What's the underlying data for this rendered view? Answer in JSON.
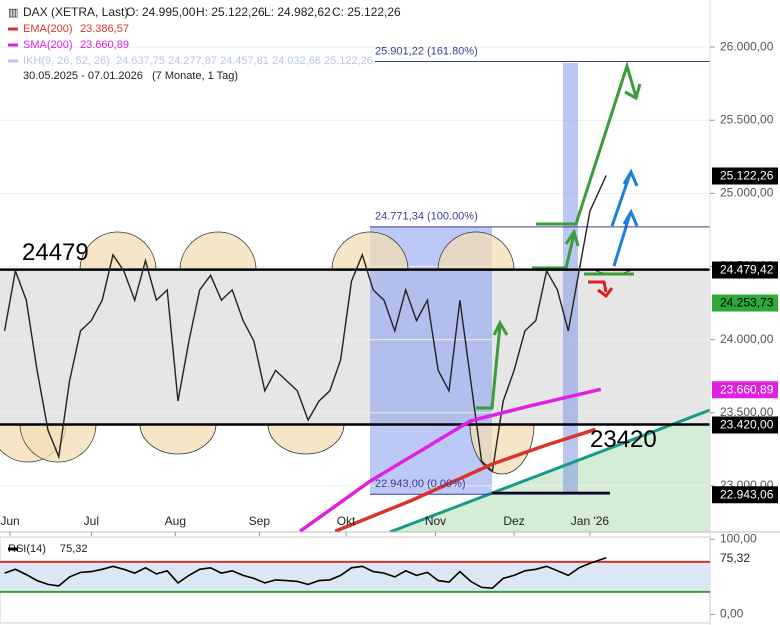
{
  "chart_data": {
    "type": "line",
    "title": "DAX (XETRA, Last)",
    "quote": [
      "O: 24.995,00",
      "H: 25.122,26",
      "L: 24.982,62",
      "C: 25.122,26"
    ],
    "indicators": [
      {
        "name": "EMA(200)",
        "label": "23.386,57",
        "color": "#d9342b"
      },
      {
        "name": "SMA(200)",
        "label": "23.660,89",
        "color": "#e020e0"
      },
      {
        "name": "IKH(9, 26, 52, 26)",
        "label": "24.637,75  24.277,87  24.457,81  24.032,66  25.122,26",
        "color": "#b9c6e6"
      }
    ],
    "period": "30.05.2025 - 07.01.2026",
    "period_note": "(7 Monate, 1 Tag)",
    "x": [
      0,
      4,
      8,
      12,
      16,
      20,
      24,
      28,
      32,
      36,
      40,
      44,
      48,
      52,
      56,
      60,
      64,
      68,
      72,
      76,
      80,
      84,
      88,
      92,
      96,
      100,
      104,
      108,
      112,
      116,
      120,
      124,
      128,
      132,
      136,
      140,
      144,
      148,
      152,
      156,
      160,
      164,
      168,
      172,
      176,
      180,
      184,
      188,
      192,
      196,
      200,
      204,
      208,
      212,
      216,
      222
    ],
    "xlim": [
      -1.7,
      260.3
    ],
    "xticks": [
      {
        "value": 2,
        "label": "Jun"
      },
      {
        "value": 32,
        "label": "Jul"
      },
      {
        "value": 63,
        "label": "Aug"
      },
      {
        "value": 94,
        "label": "Sep"
      },
      {
        "value": 126,
        "label": "Okt"
      },
      {
        "value": 159,
        "label": "Nov"
      },
      {
        "value": 188,
        "label": "Dez"
      },
      {
        "value": 216,
        "label": "Jan '26"
      }
    ],
    "ylim": [
      22685,
      26322
    ],
    "yticks": [
      {
        "value": 26000,
        "label": "26.000,00"
      },
      {
        "value": 25500,
        "label": "25.500,00"
      },
      {
        "value": 25000,
        "label": "25.000,00"
      },
      {
        "value": 24500,
        "label": "24.500,00"
      },
      {
        "value": 24000,
        "label": "24.000,00"
      },
      {
        "value": 23500,
        "label": "23.500,00"
      },
      {
        "value": 23000,
        "label": "23.000,00"
      }
    ],
    "series": [
      {
        "name": "DAX",
        "color": "#222222",
        "values": [
          24060,
          24470,
          24270,
          23790,
          23380,
          23200,
          23720,
          24060,
          24130,
          24270,
          24580,
          24470,
          24270,
          24540,
          24270,
          24340,
          23580,
          23990,
          24340,
          24440,
          24270,
          24340,
          24130,
          23990,
          23650,
          23790,
          23720,
          23650,
          23450,
          23580,
          23650,
          23860,
          24400,
          24580,
          24340,
          24270,
          24060,
          24340,
          24130,
          24270,
          23790,
          23650,
          24270,
          23720,
          23170,
          23100,
          23580,
          23790,
          24060,
          24130,
          24470,
          24340,
          24060,
          24470,
          24880,
          25122.26
        ]
      },
      {
        "name": "EMA(200)",
        "color": "#d9342b",
        "x": [
          122,
          150,
          180,
          200,
          218
        ],
        "values": [
          22690,
          22900,
          23150,
          23280,
          23386.57
        ]
      },
      {
        "name": "SMA(200)",
        "color": "#e020e0",
        "x": [
          109,
          135,
          172,
          194,
          220
        ],
        "values": [
          22690,
          23034,
          23445,
          23548,
          23660.89
        ]
      }
    ],
    "levels": [
      {
        "value": 24479,
        "label": "24479"
      },
      {
        "value": 23420,
        "label": "23420"
      }
    ],
    "fib": [
      {
        "value": 25901.22,
        "label": "25.901,22 (161.80%)"
      },
      {
        "value": 24771.34,
        "label": "24.771,34 (100.00%)"
      },
      {
        "value": 22943.0,
        "label": "22.943,00 (0.00%)"
      }
    ],
    "price_labels": [
      {
        "value": 25122.26,
        "label": "25.122,26",
        "color": "#000000"
      },
      {
        "value": 24479.42,
        "label": "24.479,42",
        "color": "#000000"
      },
      {
        "value": 24253.73,
        "label": "24.253,73",
        "color": "#2eaa3a"
      },
      {
        "value": 23660.89,
        "label": "23.660,89",
        "color": "#e020e0"
      },
      {
        "value": 23420.0,
        "label": "23.420,00",
        "color": "#000000"
      },
      {
        "value": 22943.06,
        "label": "22.943,06",
        "color": "#000000"
      }
    ],
    "rsi": {
      "name": "RSI(14)",
      "label": "75,32",
      "value": 75.32,
      "values": [
        55,
        60,
        53,
        45,
        40,
        38,
        50,
        56,
        57,
        60,
        64,
        60,
        55,
        62,
        54,
        58,
        42,
        52,
        60,
        62,
        55,
        58,
        52,
        48,
        42,
        46,
        45,
        44,
        40,
        45,
        46,
        52,
        62,
        64,
        57,
        55,
        50,
        58,
        52,
        56,
        45,
        43,
        57,
        44,
        36,
        35,
        48,
        52,
        58,
        60,
        64,
        58,
        52,
        62,
        68,
        75.32
      ],
      "ylim": [
        -10,
        103
      ],
      "yticks": [
        {
          "value": 100,
          "label": "100,00"
        },
        {
          "value": 0,
          "label": "0,00"
        }
      ],
      "bands": [
        30,
        70
      ]
    }
  }
}
